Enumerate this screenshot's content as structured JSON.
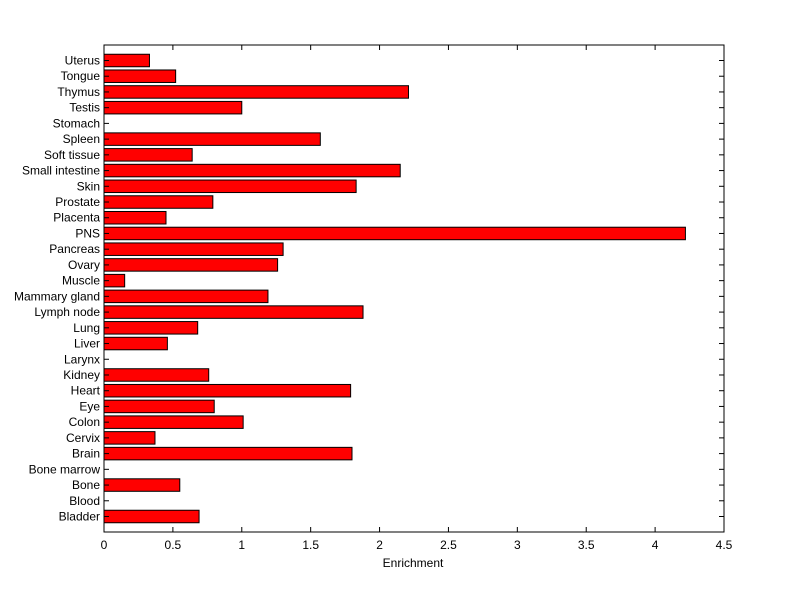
{
  "chart_data": {
    "type": "bar",
    "orientation": "horizontal",
    "title": "",
    "xlabel": "Enrichment",
    "ylabel": "",
    "xlim": [
      0,
      4.5
    ],
    "xticks": [
      0,
      0.5,
      1,
      1.5,
      2,
      2.5,
      3,
      3.5,
      4,
      4.5
    ],
    "xtick_labels": [
      "0",
      "0.5",
      "1",
      "1.5",
      "2",
      "2.5",
      "3",
      "3.5",
      "4",
      "4.5"
    ],
    "grid": false,
    "bar_color": "#ff0000",
    "edge_color": "#000000",
    "categories": [
      "Bladder",
      "Blood",
      "Bone",
      "Bone marrow",
      "Brain",
      "Cervix",
      "Colon",
      "Eye",
      "Heart",
      "Kidney",
      "Larynx",
      "Liver",
      "Lung",
      "Lymph node",
      "Mammary gland",
      "Muscle",
      "Ovary",
      "Pancreas",
      "PNS",
      "Placenta",
      "Prostate",
      "Skin",
      "Small intestine",
      "Soft tissue",
      "Spleen",
      "Stomach",
      "Testis",
      "Thymus",
      "Tongue",
      "Uterus"
    ],
    "values": [
      0.69,
      0,
      0.55,
      0,
      1.8,
      0.37,
      1.01,
      0.8,
      1.79,
      0.76,
      0,
      0.46,
      0.68,
      1.88,
      1.19,
      0.15,
      1.26,
      1.3,
      4.22,
      0.45,
      0.79,
      1.83,
      2.15,
      0.64,
      1.57,
      0,
      1.0,
      2.21,
      0.52,
      0.33
    ]
  }
}
